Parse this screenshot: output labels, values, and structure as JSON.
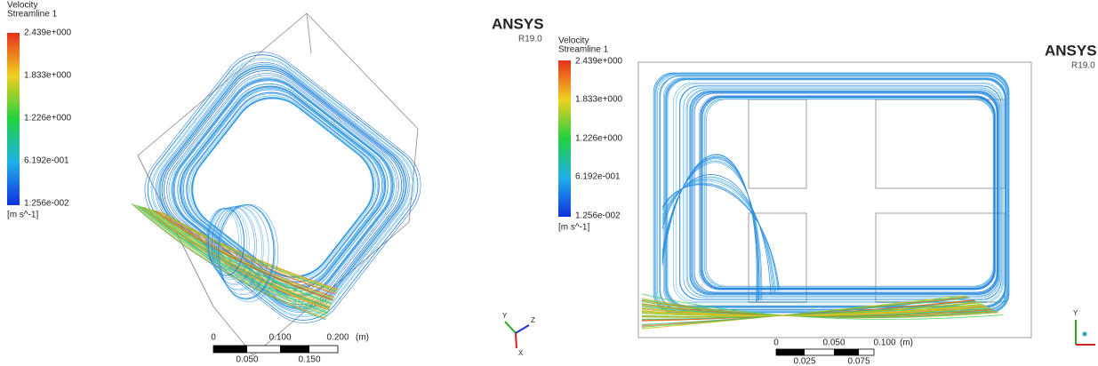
{
  "left": {
    "legend": {
      "title": "Velocity",
      "subtitle": "Streamline 1",
      "ticks": [
        "2.439e+000",
        "1.833e+000",
        "1.226e+000",
        "6.192e-001",
        "1.256e-002"
      ],
      "unit": "[m s^-1]"
    },
    "logo": {
      "brand": "ANSYS",
      "version": "R19.0"
    },
    "scale": {
      "top": [
        "0",
        "0.100",
        "0.200"
      ],
      "unit": "(m)",
      "bottom": [
        "0.050",
        "0.150"
      ]
    },
    "axes": [
      "Y",
      "Z",
      "X"
    ]
  },
  "right": {
    "legend": {
      "title": "Velocity",
      "subtitle": "Streamline 1",
      "ticks": [
        "2.439e+000",
        "1.833e+000",
        "1.226e+000",
        "6.192e-001",
        "1.256e-002"
      ],
      "unit": "[m s^-1]"
    },
    "logo": {
      "brand": "ANSYS",
      "version": "R19.0"
    },
    "scale": {
      "top": [
        "0",
        "0.050",
        "0.100"
      ],
      "unit": "(m)",
      "bottom": [
        "0.025",
        "0.075"
      ]
    },
    "axes": [
      "Y"
    ]
  }
}
